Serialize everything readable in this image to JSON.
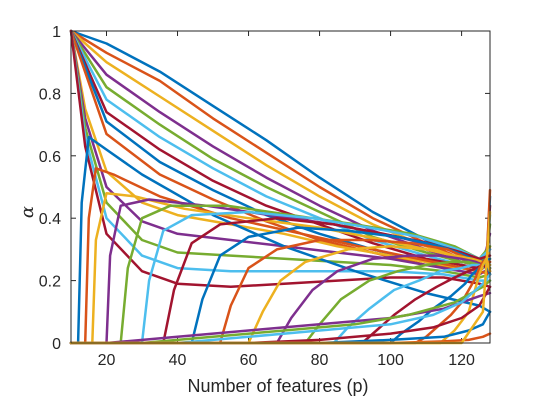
{
  "chart_data": {
    "type": "line",
    "title": "",
    "xlabel": "Number of features (p)",
    "ylabel": "α",
    "xlim": [
      10,
      128
    ],
    "ylim": [
      0,
      1
    ],
    "xticks": [
      20,
      40,
      60,
      80,
      100,
      120
    ],
    "yticks": [
      0,
      0.2,
      0.4,
      0.6,
      0.8,
      1
    ],
    "ytick_labels": [
      "0",
      "0.2",
      "0.4",
      "0.6",
      "0.8",
      "1"
    ],
    "grid": false,
    "box": true,
    "series_colors": [
      "#0072BD",
      "#D95319",
      "#EDB120",
      "#7E2F8E",
      "#77AC30",
      "#4DBEEE",
      "#A2142F"
    ],
    "series": [
      {
        "x": [
          10,
          20,
          35,
          50,
          65,
          80,
          95,
          110,
          120,
          125,
          127,
          128
        ],
        "y": [
          1.0,
          0.96,
          0.87,
          0.76,
          0.65,
          0.53,
          0.42,
          0.33,
          0.28,
          0.26,
          0.26,
          0.25
        ]
      },
      {
        "x": [
          10,
          20,
          35,
          50,
          65,
          80,
          95,
          110,
          120,
          125,
          127,
          128
        ],
        "y": [
          1.0,
          0.93,
          0.84,
          0.72,
          0.61,
          0.5,
          0.4,
          0.32,
          0.27,
          0.25,
          0.25,
          0.26
        ]
      },
      {
        "x": [
          10,
          20,
          35,
          50,
          65,
          80,
          95,
          110,
          120,
          125,
          127,
          128
        ],
        "y": [
          1.0,
          0.9,
          0.79,
          0.68,
          0.57,
          0.47,
          0.38,
          0.31,
          0.27,
          0.26,
          0.25,
          0.31
        ]
      },
      {
        "x": [
          10,
          20,
          35,
          50,
          65,
          80,
          95,
          110,
          120,
          125,
          127,
          128
        ],
        "y": [
          1.0,
          0.86,
          0.74,
          0.63,
          0.53,
          0.44,
          0.36,
          0.3,
          0.26,
          0.25,
          0.3,
          0.35
        ]
      },
      {
        "x": [
          10,
          20,
          35,
          50,
          65,
          80,
          95,
          110,
          120,
          125,
          127,
          128
        ],
        "y": [
          1.0,
          0.82,
          0.7,
          0.59,
          0.5,
          0.42,
          0.34,
          0.29,
          0.26,
          0.25,
          0.28,
          0.38
        ]
      },
      {
        "x": [
          10,
          20,
          35,
          50,
          65,
          80,
          95,
          110,
          120,
          125,
          127,
          128
        ],
        "y": [
          1.0,
          0.78,
          0.66,
          0.56,
          0.47,
          0.4,
          0.33,
          0.28,
          0.25,
          0.24,
          0.27,
          0.41
        ]
      },
      {
        "x": [
          10,
          20,
          35,
          50,
          65,
          80,
          95,
          110,
          120,
          125,
          127,
          128
        ],
        "y": [
          1.0,
          0.74,
          0.62,
          0.52,
          0.44,
          0.38,
          0.32,
          0.27,
          0.25,
          0.24,
          0.26,
          0.44
        ]
      },
      {
        "x": [
          10,
          20,
          35,
          50,
          65,
          80,
          95,
          110,
          120,
          125,
          127,
          128
        ],
        "y": [
          1.0,
          0.71,
          0.58,
          0.49,
          0.41,
          0.35,
          0.3,
          0.26,
          0.24,
          0.23,
          0.25,
          0.47
        ]
      },
      {
        "x": [
          10,
          20,
          35,
          50,
          65,
          80,
          95,
          110,
          120,
          125,
          127,
          128
        ],
        "y": [
          1.0,
          0.67,
          0.54,
          0.46,
          0.39,
          0.33,
          0.29,
          0.25,
          0.24,
          0.23,
          0.25,
          0.49
        ]
      },
      {
        "x": [
          10,
          14,
          20,
          30,
          40,
          55,
          70,
          85,
          100,
          115,
          125,
          128
        ],
        "y": [
          1.0,
          0.75,
          0.55,
          0.45,
          0.41,
          0.38,
          0.35,
          0.31,
          0.28,
          0.25,
          0.23,
          0.27
        ]
      },
      {
        "x": [
          10,
          14,
          20,
          30,
          40,
          55,
          70,
          85,
          100,
          115,
          125,
          128
        ],
        "y": [
          1.0,
          0.72,
          0.5,
          0.39,
          0.35,
          0.33,
          0.31,
          0.29,
          0.27,
          0.24,
          0.22,
          0.24
        ]
      },
      {
        "x": [
          10,
          14,
          20,
          30,
          40,
          55,
          70,
          85,
          100,
          115,
          125,
          128
        ],
        "y": [
          1.0,
          0.69,
          0.45,
          0.33,
          0.29,
          0.28,
          0.27,
          0.26,
          0.25,
          0.23,
          0.21,
          0.22
        ]
      },
      {
        "x": [
          10,
          14,
          20,
          30,
          40,
          55,
          70,
          85,
          100,
          115,
          125,
          128
        ],
        "y": [
          1.0,
          0.66,
          0.4,
          0.28,
          0.24,
          0.23,
          0.23,
          0.23,
          0.23,
          0.22,
          0.2,
          0.2
        ]
      },
      {
        "x": [
          10,
          14,
          20,
          30,
          40,
          55,
          70,
          85,
          100,
          115,
          125,
          128
        ],
        "y": [
          1.0,
          0.63,
          0.35,
          0.23,
          0.19,
          0.18,
          0.19,
          0.2,
          0.21,
          0.21,
          0.19,
          0.18
        ]
      },
      {
        "x": [
          10,
          12,
          13,
          15,
          20,
          30,
          50,
          70,
          90,
          110,
          125,
          128
        ],
        "y": [
          0.0,
          0.0,
          0.45,
          0.66,
          0.62,
          0.54,
          0.41,
          0.31,
          0.23,
          0.16,
          0.12,
          0.1
        ]
      },
      {
        "x": [
          10,
          14,
          15,
          17,
          22,
          35,
          55,
          75,
          95,
          112,
          125,
          128
        ],
        "y": [
          0.0,
          0.0,
          0.4,
          0.56,
          0.54,
          0.47,
          0.4,
          0.35,
          0.3,
          0.26,
          0.23,
          0.22
        ]
      },
      {
        "x": [
          10,
          16,
          17,
          20,
          28,
          42,
          60,
          80,
          98,
          114,
          125,
          128
        ],
        "y": [
          0.0,
          0.0,
          0.33,
          0.48,
          0.47,
          0.43,
          0.4,
          0.37,
          0.33,
          0.29,
          0.26,
          0.27
        ]
      },
      {
        "x": [
          10,
          20,
          21,
          24,
          32,
          48,
          66,
          84,
          102,
          116,
          125,
          128
        ],
        "y": [
          0.0,
          0.0,
          0.28,
          0.44,
          0.46,
          0.44,
          0.41,
          0.38,
          0.34,
          0.3,
          0.27,
          0.3
        ]
      },
      {
        "x": [
          10,
          24,
          26,
          30,
          38,
          54,
          72,
          90,
          106,
          118,
          125,
          128
        ],
        "y": [
          0.0,
          0.0,
          0.24,
          0.4,
          0.44,
          0.44,
          0.41,
          0.38,
          0.35,
          0.31,
          0.27,
          0.31
        ]
      },
      {
        "x": [
          10,
          30,
          32,
          36,
          44,
          60,
          78,
          94,
          108,
          119,
          125,
          128
        ],
        "y": [
          0.0,
          0.0,
          0.2,
          0.36,
          0.41,
          0.42,
          0.4,
          0.37,
          0.34,
          0.3,
          0.27,
          0.3
        ]
      },
      {
        "x": [
          10,
          36,
          39,
          44,
          52,
          68,
          84,
          98,
          111,
          120,
          125,
          128
        ],
        "y": [
          0.0,
          0.0,
          0.17,
          0.32,
          0.38,
          0.4,
          0.38,
          0.35,
          0.32,
          0.29,
          0.27,
          0.28
        ]
      },
      {
        "x": [
          10,
          44,
          47,
          52,
          60,
          74,
          88,
          102,
          114,
          121,
          125,
          128
        ],
        "y": [
          0.0,
          0.0,
          0.14,
          0.28,
          0.34,
          0.37,
          0.36,
          0.34,
          0.31,
          0.28,
          0.26,
          0.27
        ]
      },
      {
        "x": [
          10,
          52,
          55,
          60,
          68,
          80,
          94,
          106,
          116,
          122,
          125,
          128
        ],
        "y": [
          0.0,
          0.0,
          0.12,
          0.24,
          0.3,
          0.33,
          0.33,
          0.32,
          0.3,
          0.27,
          0.26,
          0.26
        ]
      },
      {
        "x": [
          10,
          60,
          64,
          69,
          76,
          88,
          100,
          110,
          118,
          123,
          126,
          128
        ],
        "y": [
          0.0,
          0.0,
          0.1,
          0.2,
          0.26,
          0.3,
          0.31,
          0.3,
          0.28,
          0.27,
          0.26,
          0.25
        ]
      },
      {
        "x": [
          10,
          68,
          72,
          78,
          85,
          95,
          105,
          114,
          120,
          124,
          126,
          128
        ],
        "y": [
          0.0,
          0.0,
          0.08,
          0.17,
          0.23,
          0.27,
          0.28,
          0.28,
          0.27,
          0.26,
          0.25,
          0.24
        ]
      },
      {
        "x": [
          10,
          76,
          80,
          86,
          94,
          102,
          110,
          117,
          122,
          125,
          127,
          128
        ],
        "y": [
          0.0,
          0.0,
          0.06,
          0.14,
          0.2,
          0.23,
          0.25,
          0.26,
          0.26,
          0.25,
          0.24,
          0.24
        ]
      },
      {
        "x": [
          10,
          84,
          88,
          94,
          101,
          108,
          114,
          120,
          123,
          125,
          127,
          128
        ],
        "y": [
          0.0,
          0.0,
          0.05,
          0.11,
          0.17,
          0.2,
          0.23,
          0.24,
          0.25,
          0.25,
          0.24,
          0.23
        ]
      },
      {
        "x": [
          10,
          92,
          96,
          101,
          107,
          113,
          118,
          122,
          124,
          126,
          127,
          128
        ],
        "y": [
          0.0,
          0.0,
          0.04,
          0.09,
          0.14,
          0.18,
          0.21,
          0.23,
          0.24,
          0.25,
          0.24,
          0.22
        ]
      },
      {
        "x": [
          10,
          100,
          103,
          108,
          112,
          117,
          121,
          123,
          125,
          126,
          127,
          128
        ],
        "y": [
          0.0,
          0.0,
          0.03,
          0.07,
          0.11,
          0.15,
          0.19,
          0.22,
          0.24,
          0.25,
          0.26,
          0.22
        ]
      },
      {
        "x": [
          10,
          107,
          110,
          113,
          117,
          120,
          122,
          124,
          125,
          126,
          127,
          128
        ],
        "y": [
          0.0,
          0.0,
          0.02,
          0.05,
          0.09,
          0.13,
          0.17,
          0.21,
          0.24,
          0.26,
          0.27,
          0.23
        ]
      },
      {
        "x": [
          10,
          114,
          116,
          118,
          120,
          122,
          123,
          124,
          125,
          126,
          127,
          128
        ],
        "y": [
          0.0,
          0.0,
          0.02,
          0.04,
          0.07,
          0.1,
          0.14,
          0.18,
          0.22,
          0.25,
          0.27,
          0.23
        ]
      },
      {
        "x": [
          10,
          20,
          40,
          60,
          80,
          100,
          115,
          125,
          128
        ],
        "y": [
          0.0,
          0.0,
          0.02,
          0.04,
          0.06,
          0.08,
          0.11,
          0.15,
          0.16
        ]
      },
      {
        "x": [
          10,
          30,
          50,
          70,
          90,
          105,
          118,
          126,
          128
        ],
        "y": [
          0.0,
          0.0,
          0.02,
          0.04,
          0.06,
          0.09,
          0.13,
          0.18,
          0.2
        ]
      },
      {
        "x": [
          10,
          40,
          60,
          80,
          100,
          112,
          120,
          126,
          128
        ],
        "y": [
          0.0,
          0.0,
          0.02,
          0.04,
          0.06,
          0.09,
          0.13,
          0.19,
          0.22
        ]
      },
      {
        "x": [
          10,
          60,
          80,
          100,
          112,
          120,
          125,
          127,
          128
        ],
        "y": [
          0.0,
          0.0,
          0.01,
          0.03,
          0.05,
          0.08,
          0.12,
          0.16,
          0.18
        ]
      },
      {
        "x": [
          10,
          80,
          100,
          115,
          122,
          126,
          127,
          128
        ],
        "y": [
          0.0,
          0.0,
          0.01,
          0.02,
          0.04,
          0.06,
          0.08,
          0.1
        ]
      },
      {
        "x": [
          10,
          100,
          115,
          122,
          126,
          128
        ],
        "y": [
          0.0,
          0.0,
          0.005,
          0.01,
          0.02,
          0.03
        ]
      },
      {
        "x": [
          10,
          120,
          126,
          127,
          128
        ],
        "y": [
          0.0,
          0.0,
          0.1,
          0.25,
          0.42
        ]
      }
    ]
  }
}
